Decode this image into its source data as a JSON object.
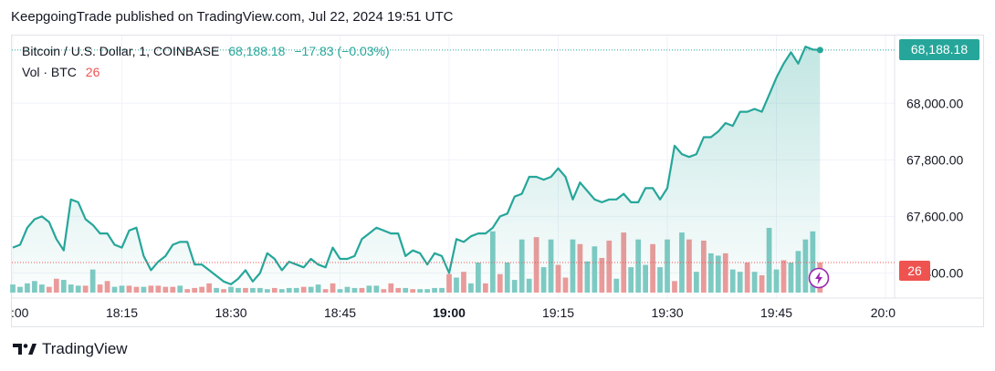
{
  "header": {
    "publisher_line": "KeepgoingTrade published on TradingView.com, Jul 22, 2024 19:51 UTC"
  },
  "legend": {
    "symbol": "Bitcoin / U.S. Dollar, 1, COINBASE",
    "last_price": "68,188.18",
    "change": "−17.83 (−0.03%)",
    "volume_label": "Vol · BTC",
    "volume_value": "26"
  },
  "tags": {
    "price": "68,188.18",
    "volume": "26"
  },
  "footer": {
    "brand": "TradingView"
  },
  "icons": {
    "logo": "tradingview-logo-icon",
    "flash": "lightning-icon"
  },
  "colors": {
    "line": "#26a69a",
    "area": "#26a69a",
    "volume_up": "#80cbc4",
    "volume_down": "#ef9a9a",
    "price_tag": "#26a69a",
    "volume_tag": "#ef5350",
    "flash": "#9c27b0"
  },
  "chart_data": {
    "type": "area",
    "title": "Bitcoin / U.S. Dollar, 1, COINBASE",
    "x_unit": "minutes past 18:00 UTC",
    "x_ticks": [
      {
        "label": ":00",
        "x": 0
      },
      {
        "label": "18:15",
        "x": 15
      },
      {
        "label": "18:30",
        "x": 30
      },
      {
        "label": "18:45",
        "x": 45
      },
      {
        "label": "19:00",
        "x": 60
      },
      {
        "label": "19:15",
        "x": 75
      },
      {
        "label": "19:30",
        "x": 90
      },
      {
        "label": "19:45",
        "x": 105
      },
      {
        "label": "20:0",
        "x": 120
      }
    ],
    "xlim": [
      0,
      121
    ],
    "y_ticks": [
      "67,400.00",
      "67,600.00",
      "67,800.00",
      "68,000.00"
    ],
    "y_tick_values": [
      67400,
      67600,
      67800,
      68000
    ],
    "ylim": [
      67334,
      68236
    ],
    "grid": true,
    "series": [
      {
        "name": "Bitcoin / U.S. Dollar",
        "x": [
          0,
          1,
          2,
          3,
          4,
          5,
          6,
          7,
          8,
          9,
          10,
          11,
          12,
          13,
          14,
          15,
          16,
          17,
          18,
          19,
          20,
          21,
          22,
          23,
          24,
          25,
          26,
          27,
          28,
          29,
          30,
          31,
          32,
          33,
          34,
          35,
          36,
          37,
          38,
          39,
          40,
          41,
          42,
          43,
          44,
          45,
          46,
          47,
          48,
          49,
          50,
          51,
          52,
          53,
          54,
          55,
          56,
          57,
          58,
          59,
          60,
          61,
          62,
          63,
          64,
          65,
          66,
          67,
          68,
          69,
          70,
          71,
          72,
          73,
          74,
          75,
          76,
          77,
          78,
          79,
          80,
          81,
          82,
          83,
          84,
          85,
          86,
          87,
          88,
          89,
          90,
          91,
          92,
          93,
          94,
          95,
          96,
          97,
          98,
          99,
          100,
          101,
          102,
          103,
          104,
          105,
          106,
          107,
          108,
          109,
          110,
          111
        ],
        "y": [
          67490,
          67500,
          67560,
          67590,
          67600,
          67580,
          67520,
          67480,
          67660,
          67650,
          67590,
          67570,
          67540,
          67540,
          67500,
          67490,
          67550,
          67560,
          67460,
          67410,
          67440,
          67460,
          67500,
          67510,
          67510,
          67430,
          67430,
          67410,
          67390,
          67370,
          67360,
          67380,
          67410,
          67370,
          67400,
          67470,
          67450,
          67410,
          67440,
          67430,
          67420,
          67450,
          67430,
          67420,
          67490,
          67450,
          67450,
          67460,
          67520,
          67540,
          67560,
          67550,
          67540,
          67540,
          67460,
          67480,
          67470,
          67430,
          67470,
          67460,
          67400,
          67520,
          67510,
          67530,
          67540,
          67540,
          67560,
          67600,
          67610,
          67670,
          67680,
          67740,
          67740,
          67730,
          67740,
          67770,
          67740,
          67660,
          67720,
          67690,
          67660,
          67650,
          67660,
          67660,
          67680,
          67650,
          67650,
          67700,
          67700,
          67660,
          67700,
          67850,
          67820,
          67810,
          67820,
          67880,
          67880,
          67900,
          67930,
          67920,
          67970,
          67970,
          67980,
          67970,
          68030,
          68090,
          68140,
          68180,
          68140,
          68200,
          68190,
          68188
        ]
      }
    ],
    "volume": {
      "name": "Vol · BTC",
      "values": [
        7,
        5,
        8,
        10,
        7,
        5,
        12,
        11,
        7,
        6,
        6,
        20,
        7,
        10,
        5,
        6,
        6,
        5,
        5,
        6,
        6,
        5,
        5,
        6,
        3,
        4,
        5,
        8,
        4,
        3,
        5,
        4,
        4,
        4,
        4,
        3,
        4,
        3,
        4,
        4,
        5,
        5,
        7,
        3,
        8,
        3,
        5,
        4,
        4,
        6,
        6,
        3,
        8,
        4,
        4,
        3,
        3,
        3,
        4,
        4,
        16,
        13,
        18,
        8,
        26,
        8,
        53,
        16,
        26,
        11,
        46,
        12,
        48,
        22,
        46,
        24,
        13,
        46,
        42,
        27,
        40,
        30,
        45,
        12,
        52,
        22,
        46,
        24,
        42,
        22,
        46,
        10,
        52,
        46,
        18,
        45,
        34,
        32,
        34,
        20,
        18,
        26,
        18,
        15,
        56,
        20,
        28,
        26,
        36,
        46,
        53,
        26
      ],
      "colors": [
        "up",
        "up",
        "up",
        "up",
        "up",
        "down",
        "down",
        "up",
        "up",
        "up",
        "down",
        "up",
        "down",
        "down",
        "up",
        "up",
        "down",
        "down",
        "up",
        "down",
        "down",
        "down",
        "down",
        "up",
        "down",
        "down",
        "down",
        "down",
        "up",
        "down",
        "up",
        "up",
        "down",
        "up",
        "up",
        "up",
        "down",
        "up",
        "up",
        "up",
        "down",
        "up",
        "up",
        "down",
        "down",
        "up",
        "up",
        "up",
        "down",
        "up",
        "up",
        "down",
        "down",
        "down",
        "up",
        "down",
        "up",
        "up",
        "up",
        "up",
        "down",
        "up",
        "down",
        "up",
        "up",
        "down",
        "up",
        "down",
        "up",
        "up",
        "up",
        "up",
        "down",
        "up",
        "up",
        "down",
        "down",
        "up",
        "down",
        "up",
        "up",
        "down",
        "down",
        "up",
        "down",
        "up",
        "up",
        "up",
        "down",
        "up",
        "up",
        "down",
        "up",
        "down",
        "up",
        "down",
        "up",
        "up",
        "down",
        "up",
        "up",
        "down",
        "up",
        "down",
        "up",
        "up",
        "down",
        "up",
        "up",
        "up",
        "up",
        "down"
      ]
    },
    "last_value_label": "68,188.18",
    "last_volume_label": "26"
  }
}
